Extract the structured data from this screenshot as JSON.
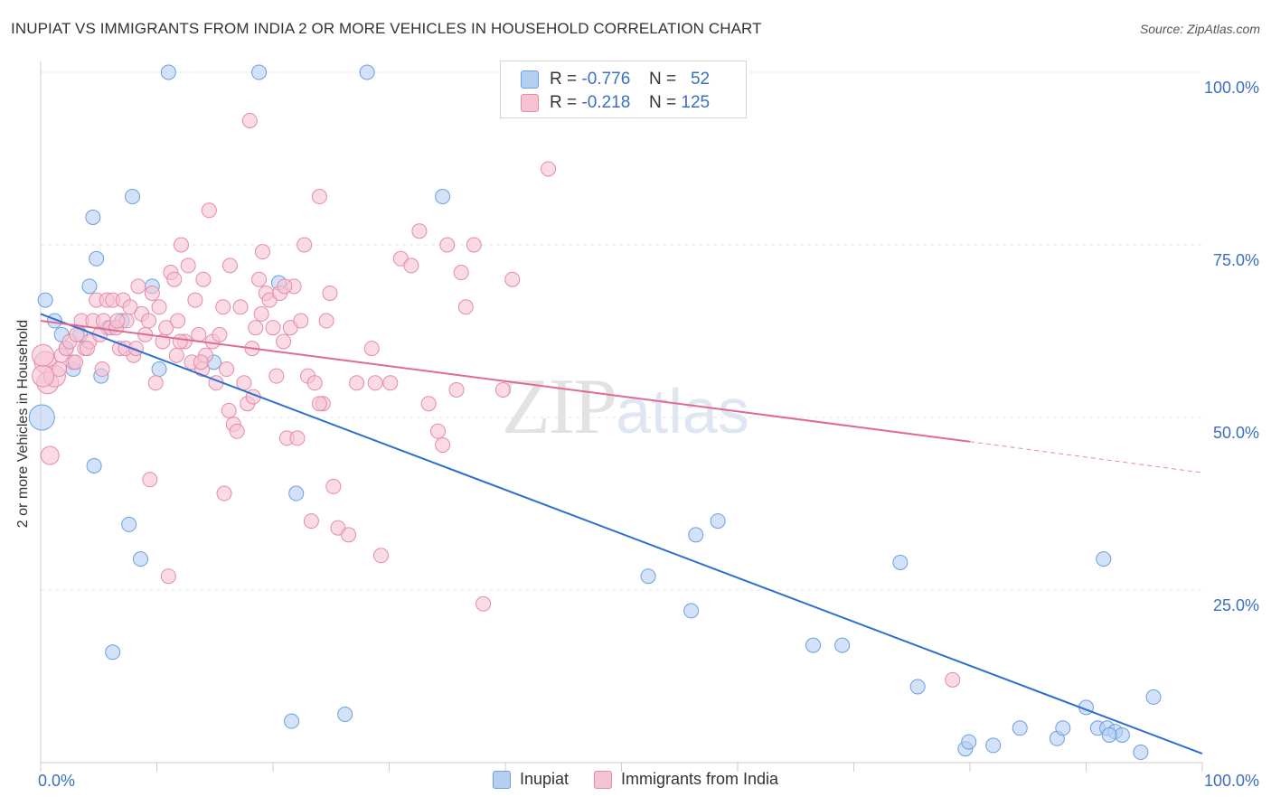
{
  "title": "INUPIAT VS IMMIGRANTS FROM INDIA 2 OR MORE VEHICLES IN HOUSEHOLD CORRELATION CHART",
  "source": "Source: ZipAtlas.com",
  "watermark": {
    "zip": "ZIP",
    "atlas": "atlas"
  },
  "colors": {
    "blue": "#6a9fe0",
    "blue_fill": "#b5cff3",
    "blue_line": "#2f6fd0",
    "pink": "#e58aa8",
    "pink_fill": "#f6c3d3",
    "pink_line": "#e06a92",
    "axis_text": "#3a6fc4",
    "grid": "#e6e6e6"
  },
  "legend_top": [
    {
      "r_label": "R =",
      "r_value": "-0.776",
      "n_label": "N =",
      "n_value": "52"
    },
    {
      "r_label": "R =",
      "r_value": "-0.218",
      "n_label": "N =",
      "n_value": "125"
    }
  ],
  "legend_bottom": [
    "Inupiat",
    "Immigrants from India"
  ],
  "chart_data": {
    "type": "scatter",
    "title": "INUPIAT VS IMMIGRANTS FROM INDIA 2 OR MORE VEHICLES IN HOUSEHOLD CORRELATION CHART",
    "xlabel": "",
    "ylabel": "2 or more Vehicles in Household",
    "xlim": [
      0,
      100
    ],
    "ylim": [
      0,
      100
    ],
    "x_tick_labels": [
      "0.0%",
      "100.0%"
    ],
    "y_tick_labels": [
      "25.0%",
      "50.0%",
      "75.0%",
      "100.0%"
    ],
    "y_ticks": [
      25,
      50,
      75,
      100
    ],
    "x_ticks": [
      0,
      10,
      20,
      30,
      40,
      50,
      60,
      70,
      80,
      90,
      100
    ],
    "grid": true,
    "series": [
      {
        "name": "Inupiat",
        "R": -0.776,
        "N": 52,
        "trend": {
          "x": [
            0,
            100
          ],
          "y": [
            65,
            1.3
          ]
        },
        "points": [
          [
            0.4,
            67
          ],
          [
            1.2,
            64
          ],
          [
            1.8,
            62
          ],
          [
            2.2,
            60
          ],
          [
            2.8,
            57
          ],
          [
            3.4,
            62
          ],
          [
            4.2,
            69
          ],
          [
            4.5,
            79
          ],
          [
            4.6,
            43
          ],
          [
            4.8,
            73
          ],
          [
            5.2,
            56
          ],
          [
            5.8,
            63
          ],
          [
            6.2,
            16
          ],
          [
            7.0,
            64
          ],
          [
            7.6,
            34.5
          ],
          [
            7.9,
            82
          ],
          [
            8.6,
            29.5
          ],
          [
            9.6,
            69
          ],
          [
            10.2,
            57
          ],
          [
            11.0,
            100
          ],
          [
            14.9,
            58
          ],
          [
            18.8,
            100
          ],
          [
            20.5,
            69.5
          ],
          [
            21.6,
            6
          ],
          [
            22.0,
            39
          ],
          [
            26.2,
            7
          ],
          [
            28.1,
            100
          ],
          [
            34.6,
            82
          ],
          [
            52.3,
            27
          ],
          [
            56.0,
            22
          ],
          [
            56.4,
            33
          ],
          [
            58.3,
            35
          ],
          [
            66.5,
            17
          ],
          [
            69.0,
            17
          ],
          [
            74.0,
            29
          ],
          [
            75.5,
            11
          ],
          [
            79.6,
            2
          ],
          [
            79.9,
            3
          ],
          [
            82.0,
            2.5
          ],
          [
            84.3,
            5
          ],
          [
            87.5,
            3.5
          ],
          [
            88.0,
            5
          ],
          [
            90.0,
            8
          ],
          [
            91.0,
            5
          ],
          [
            91.8,
            5
          ],
          [
            92.5,
            4.5
          ],
          [
            93.1,
            4
          ],
          [
            94.7,
            1.5
          ],
          [
            95.8,
            9.5
          ],
          [
            0.1,
            50
          ],
          [
            91.5,
            29.5
          ],
          [
            92.0,
            4
          ]
        ]
      },
      {
        "name": "Immigrants from India",
        "R": -0.218,
        "N": 125,
        "trend": {
          "x": [
            0,
            80
          ],
          "y": [
            64,
            46.5
          ]
        },
        "trend_dashed": {
          "x": [
            80,
            100
          ],
          "y": [
            46.5,
            42
          ]
        },
        "points": [
          [
            0.4,
            58
          ],
          [
            0.6,
            55
          ],
          [
            0.8,
            44.5
          ],
          [
            1.2,
            56
          ],
          [
            1.6,
            57
          ],
          [
            1.8,
            59
          ],
          [
            2.2,
            60
          ],
          [
            2.5,
            61
          ],
          [
            2.8,
            58
          ],
          [
            3.1,
            62
          ],
          [
            3.5,
            64
          ],
          [
            3.8,
            60
          ],
          [
            4.2,
            61
          ],
          [
            4.5,
            64
          ],
          [
            4.8,
            67
          ],
          [
            5.1,
            62
          ],
          [
            5.4,
            64
          ],
          [
            5.7,
            67
          ],
          [
            6.0,
            63
          ],
          [
            6.2,
            67
          ],
          [
            6.5,
            63
          ],
          [
            6.8,
            60
          ],
          [
            7.1,
            67
          ],
          [
            7.4,
            64
          ],
          [
            7.7,
            66
          ],
          [
            8.0,
            59
          ],
          [
            8.4,
            69
          ],
          [
            8.7,
            65
          ],
          [
            9.0,
            62
          ],
          [
            9.3,
            64
          ],
          [
            9.6,
            68
          ],
          [
            9.9,
            55
          ],
          [
            10.2,
            66
          ],
          [
            10.5,
            61
          ],
          [
            10.8,
            63
          ],
          [
            11.2,
            71
          ],
          [
            11.5,
            70
          ],
          [
            11.8,
            64
          ],
          [
            12.1,
            75
          ],
          [
            12.4,
            61
          ],
          [
            12.7,
            72
          ],
          [
            13.0,
            58
          ],
          [
            13.3,
            67
          ],
          [
            13.6,
            62
          ],
          [
            13.9,
            57
          ],
          [
            14.2,
            59
          ],
          [
            14.5,
            80
          ],
          [
            14.8,
            61
          ],
          [
            15.1,
            55
          ],
          [
            15.4,
            62
          ],
          [
            15.7,
            66
          ],
          [
            16.0,
            57
          ],
          [
            16.3,
            72
          ],
          [
            16.6,
            49
          ],
          [
            16.9,
            48
          ],
          [
            17.2,
            66
          ],
          [
            17.5,
            55
          ],
          [
            17.8,
            52
          ],
          [
            18.2,
            60
          ],
          [
            18.5,
            63
          ],
          [
            18.8,
            70
          ],
          [
            19.1,
            74
          ],
          [
            19.4,
            68
          ],
          [
            19.7,
            67
          ],
          [
            20.0,
            63
          ],
          [
            20.3,
            56
          ],
          [
            20.6,
            68
          ],
          [
            20.9,
            61
          ],
          [
            21.2,
            47
          ],
          [
            21.5,
            63
          ],
          [
            21.8,
            69
          ],
          [
            22.1,
            47
          ],
          [
            22.4,
            64
          ],
          [
            22.7,
            75
          ],
          [
            23.0,
            56
          ],
          [
            23.3,
            35
          ],
          [
            23.6,
            55
          ],
          [
            24.0,
            82
          ],
          [
            24.3,
            52
          ],
          [
            24.6,
            64
          ],
          [
            24.9,
            68
          ],
          [
            25.2,
            40
          ],
          [
            25.6,
            34
          ],
          [
            26.5,
            33
          ],
          [
            27.2,
            55
          ],
          [
            28.5,
            60
          ],
          [
            29.3,
            30
          ],
          [
            30.1,
            55
          ],
          [
            31.0,
            73
          ],
          [
            31.9,
            72
          ],
          [
            32.6,
            77
          ],
          [
            33.4,
            52
          ],
          [
            34.2,
            48
          ],
          [
            34.6,
            46
          ],
          [
            35.0,
            75
          ],
          [
            35.8,
            54
          ],
          [
            36.2,
            71
          ],
          [
            36.6,
            66
          ],
          [
            37.3,
            75
          ],
          [
            38.1,
            23
          ],
          [
            39.8,
            54
          ],
          [
            40.6,
            70
          ],
          [
            43.7,
            86
          ],
          [
            15.8,
            39
          ],
          [
            11.7,
            59
          ],
          [
            13.8,
            58
          ],
          [
            14.0,
            70
          ],
          [
            18.0,
            93
          ],
          [
            19.0,
            65
          ],
          [
            9.4,
            41
          ],
          [
            11.0,
            27
          ],
          [
            4.0,
            60
          ],
          [
            5.3,
            57
          ],
          [
            6.6,
            64
          ],
          [
            7.3,
            60
          ],
          [
            8.2,
            60
          ],
          [
            3.0,
            58
          ],
          [
            12.0,
            61
          ],
          [
            16.2,
            51
          ],
          [
            18.3,
            53
          ],
          [
            21.0,
            69
          ],
          [
            24.0,
            52
          ],
          [
            28.8,
            55
          ],
          [
            78.5,
            12
          ],
          [
            0.2,
            56
          ],
          [
            0.2,
            59
          ]
        ]
      }
    ]
  }
}
